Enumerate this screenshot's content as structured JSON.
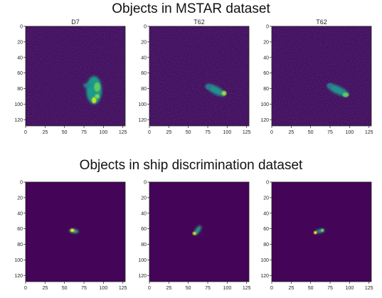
{
  "figure": {
    "sections": [
      {
        "title": "Objects in MSTAR dataset",
        "panels": [
          {
            "title": "D7",
            "cmap": "viridis",
            "x_ticks": [
              0,
              25,
              50,
              75,
              100,
              125
            ],
            "y_ticks": [
              0,
              20,
              40,
              60,
              80,
              100,
              120
            ],
            "xlim": [
              0,
              128
            ],
            "ylim": [
              0,
              128
            ]
          },
          {
            "title": "T62",
            "cmap": "viridis",
            "x_ticks": [
              0,
              25,
              50,
              75,
              100,
              125
            ],
            "y_ticks": [
              0,
              20,
              40,
              60,
              80,
              100,
              120
            ],
            "xlim": [
              0,
              128
            ],
            "ylim": [
              0,
              128
            ]
          },
          {
            "title": "T62",
            "cmap": "viridis",
            "x_ticks": [
              0,
              25,
              50,
              75,
              100,
              125
            ],
            "y_ticks": [
              0,
              20,
              40,
              60,
              80,
              100,
              120
            ],
            "xlim": [
              0,
              128
            ],
            "ylim": [
              0,
              128
            ]
          }
        ]
      },
      {
        "title": "Objects in ship discrimination dataset",
        "panels": [
          {
            "title": "",
            "cmap": "viridis",
            "x_ticks": [
              0,
              25,
              50,
              75,
              100,
              125
            ],
            "y_ticks": [
              0,
              20,
              40,
              60,
              80,
              100,
              120
            ],
            "xlim": [
              0,
              128
            ],
            "ylim": [
              0,
              128
            ]
          },
          {
            "title": "",
            "cmap": "viridis",
            "x_ticks": [
              0,
              25,
              50,
              75,
              100,
              125
            ],
            "y_ticks": [
              0,
              20,
              40,
              60,
              80,
              100,
              120
            ],
            "xlim": [
              0,
              128
            ],
            "ylim": [
              0,
              128
            ]
          },
          {
            "title": "",
            "cmap": "viridis",
            "x_ticks": [
              0,
              25,
              50,
              75,
              100,
              125
            ],
            "y_ticks": [
              0,
              20,
              40,
              60,
              80,
              100,
              120
            ],
            "xlim": [
              0,
              128
            ],
            "ylim": [
              0,
              128
            ]
          }
        ]
      }
    ]
  }
}
